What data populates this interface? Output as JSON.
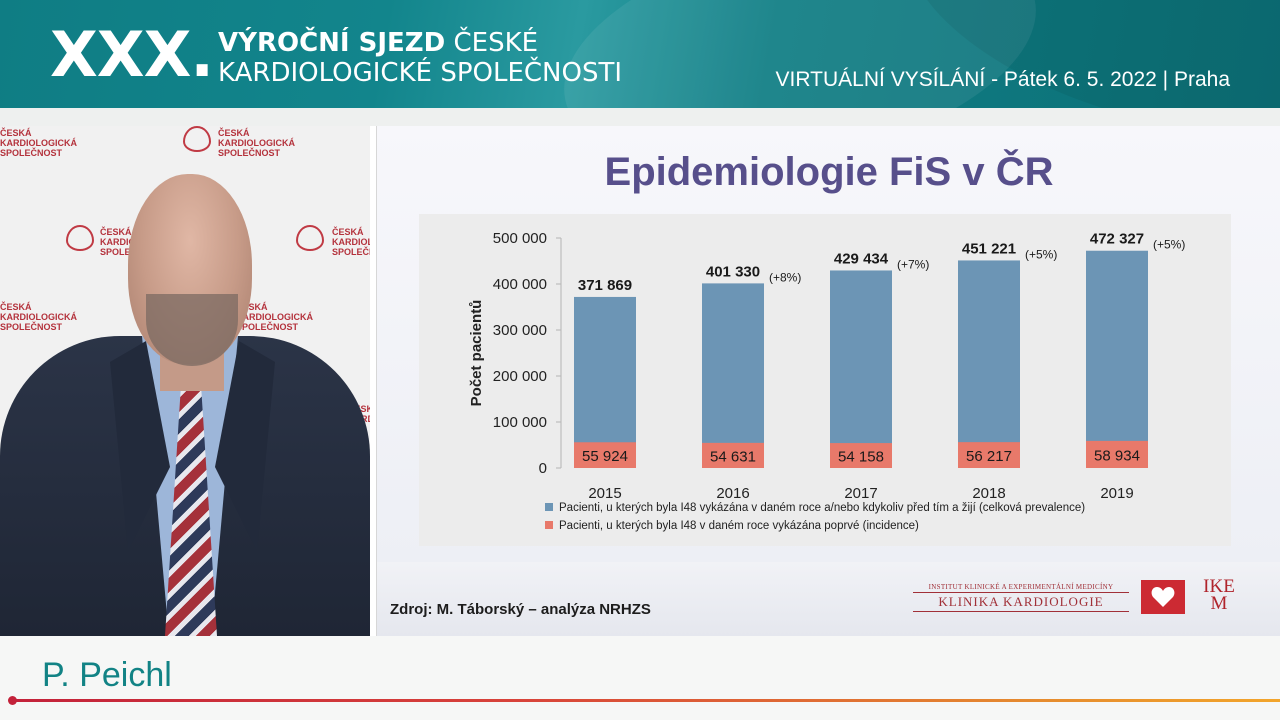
{
  "header": {
    "roman": "XXX.",
    "title_bold": "VÝROČNÍ SJEZD",
    "title_rest": " ČESKÉ",
    "title_line2": "KARDIOLOGICKÉ SPOLEČNOSTI",
    "broadcast": "VIRTUÁLNÍ VYSÍLÁNÍ  - Pátek 6. 5. 2022 | Praha",
    "colors": {
      "banner": "#0f7d84",
      "text": "#ffffff"
    }
  },
  "video": {
    "backdrop_logo_text": [
      "ČESKÁ",
      "KARDIOLOGICKÁ",
      "SPOLEČNOST"
    ],
    "backdrop_color": "#b4323c"
  },
  "slide": {
    "title": "Epidemiologie FiS v ČR",
    "source": "Zdroj: M. Táborský – analýza NRHZS",
    "institute_small": "INSTITUT KLINICKÉ A EXPERIMENTÁLNÍ MEDICÍNY",
    "clinic_name": "KLINIKA KARDIOLOGIE",
    "ikem_top": "IKE",
    "ikem_bottom": "M",
    "title_color": "#574f8b"
  },
  "chart_data": {
    "type": "bar",
    "title": "",
    "xlabel": "",
    "ylabel": "Počet pacientů",
    "ylim": [
      0,
      500000
    ],
    "yticks": [
      0,
      100000,
      200000,
      300000,
      400000,
      500000
    ],
    "ytick_labels": [
      "0",
      "100 000",
      "200 000",
      "300 000",
      "400 000",
      "500 000"
    ],
    "categories": [
      "2015",
      "2016",
      "2017",
      "2018",
      "2019"
    ],
    "series": [
      {
        "name": "Pacienti, u kterých byla I48 vykázána v daném roce a/nebo kdykoliv před tím a žijí (celková prevalence)",
        "values": [
          371869,
          401330,
          429434,
          451221,
          472327
        ],
        "labels": [
          "371 869",
          "401 330",
          "429 434",
          "451 221",
          "472 327"
        ],
        "changes": [
          "",
          "(+8%)",
          "(+7%)",
          "(+5%)",
          "(+5%)"
        ],
        "color": "#6c95b5"
      },
      {
        "name": "Pacienti, u kterých byla I48 v daném roce vykázána poprvé (incidence)",
        "values": [
          55924,
          54631,
          54158,
          56217,
          58934
        ],
        "labels": [
          "55 924",
          "54 631",
          "54 158",
          "56 217",
          "58 934"
        ],
        "color": "#e8796a"
      }
    ],
    "overlap": true,
    "grid": false,
    "legend": "bottom"
  },
  "lower_third": {
    "speaker_name": "P. Peichl",
    "accent": "#128385"
  }
}
